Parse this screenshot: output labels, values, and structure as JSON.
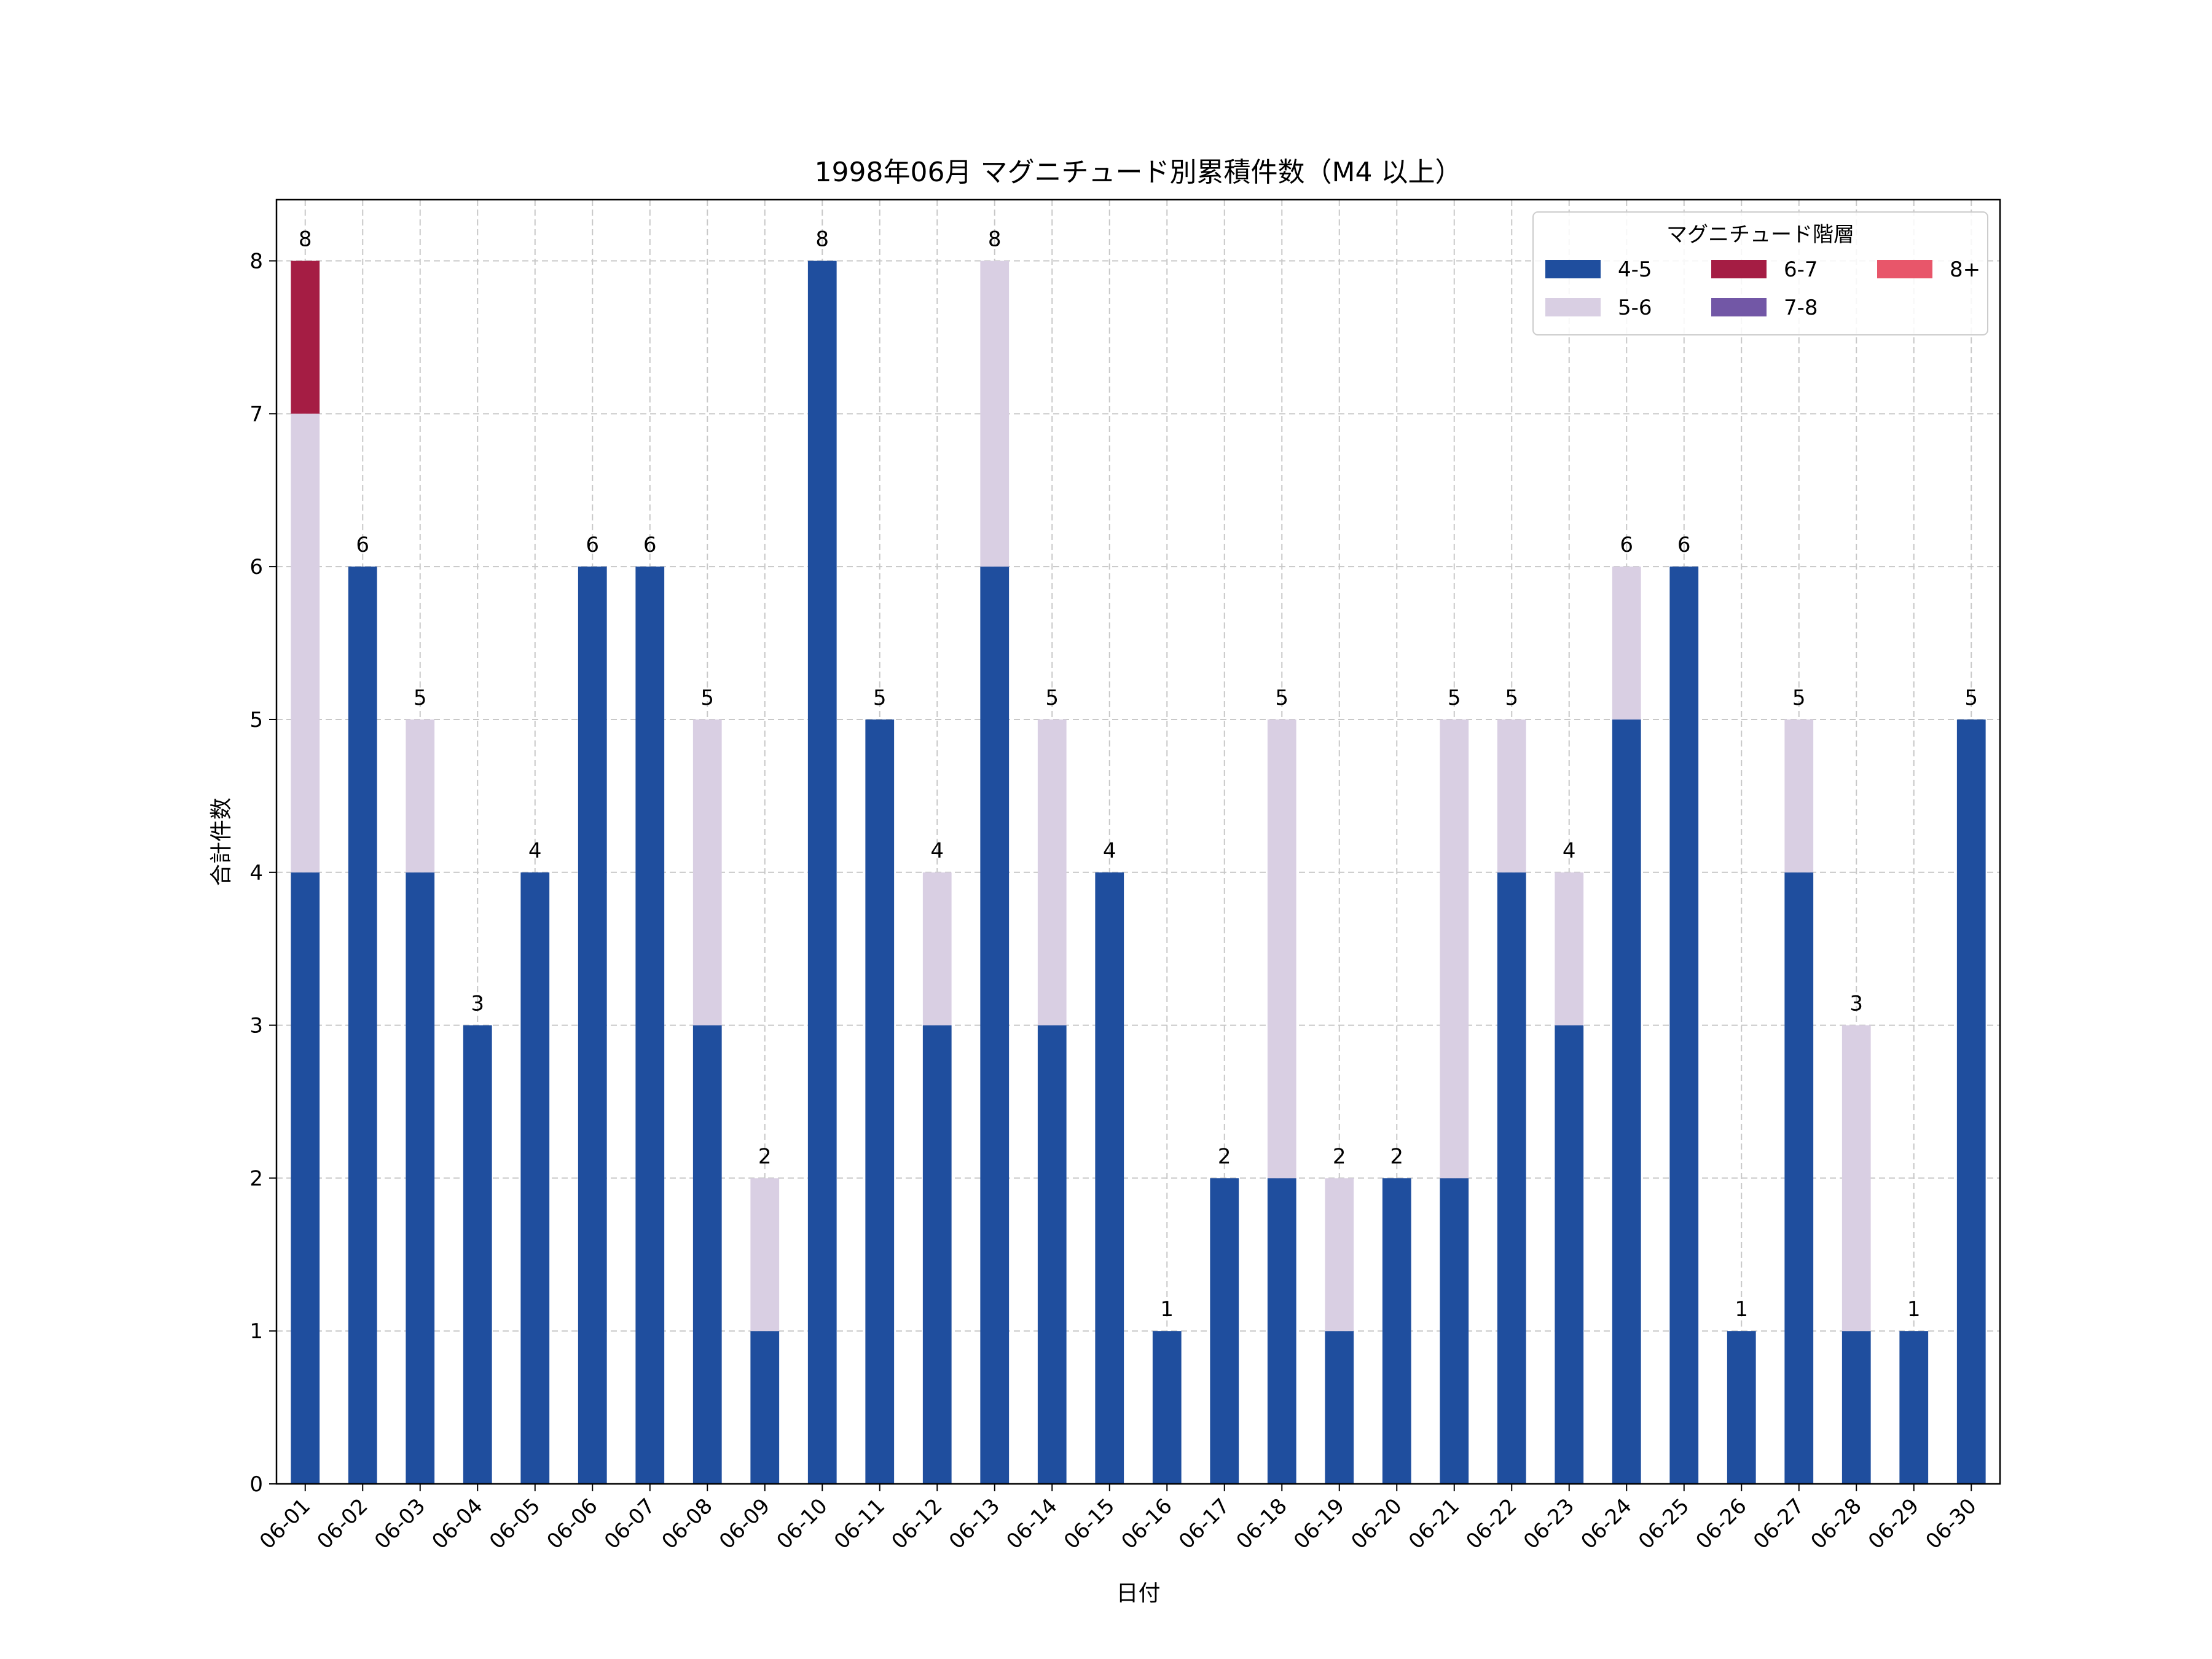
{
  "chart_data": {
    "type": "bar",
    "stacked": true,
    "title": "1998年06月 マグニチュード別累積件数（M4 以上）",
    "xlabel": "日付",
    "ylabel": "合計件数",
    "ylim": [
      0,
      8.4
    ],
    "yticks": [
      0,
      1,
      2,
      3,
      4,
      5,
      6,
      7,
      8
    ],
    "grid": true,
    "legend": {
      "title": "マグニチュード階層",
      "placement": "top-right",
      "columns": 3
    },
    "categories": [
      "06-01",
      "06-02",
      "06-03",
      "06-04",
      "06-05",
      "06-06",
      "06-07",
      "06-08",
      "06-09",
      "06-10",
      "06-11",
      "06-12",
      "06-13",
      "06-14",
      "06-15",
      "06-16",
      "06-17",
      "06-18",
      "06-19",
      "06-20",
      "06-21",
      "06-22",
      "06-23",
      "06-24",
      "06-25",
      "06-26",
      "06-27",
      "06-28",
      "06-29",
      "06-30"
    ],
    "series": [
      {
        "name": "4-5",
        "color": "#1f4e9e",
        "values": [
          4,
          6,
          4,
          3,
          4,
          6,
          6,
          3,
          1,
          8,
          5,
          3,
          6,
          3,
          4,
          1,
          2,
          2,
          1,
          2,
          2,
          4,
          3,
          5,
          6,
          1,
          4,
          1,
          1,
          5
        ]
      },
      {
        "name": "5-6",
        "color": "#d9cfe3",
        "values": [
          3,
          0,
          1,
          0,
          0,
          0,
          0,
          2,
          1,
          0,
          0,
          1,
          2,
          2,
          0,
          0,
          0,
          3,
          1,
          0,
          3,
          1,
          1,
          1,
          0,
          0,
          1,
          2,
          0,
          0
        ]
      },
      {
        "name": "6-7",
        "color": "#a51d44",
        "values": [
          1,
          0,
          0,
          0,
          0,
          0,
          0,
          0,
          0,
          0,
          0,
          0,
          0,
          0,
          0,
          0,
          0,
          0,
          0,
          0,
          0,
          0,
          0,
          0,
          0,
          0,
          0,
          0,
          0,
          0
        ]
      },
      {
        "name": "7-8",
        "color": "#7257a6",
        "values": [
          0,
          0,
          0,
          0,
          0,
          0,
          0,
          0,
          0,
          0,
          0,
          0,
          0,
          0,
          0,
          0,
          0,
          0,
          0,
          0,
          0,
          0,
          0,
          0,
          0,
          0,
          0,
          0,
          0,
          0
        ]
      },
      {
        "name": "8+",
        "color": "#e8566a",
        "values": [
          0,
          0,
          0,
          0,
          0,
          0,
          0,
          0,
          0,
          0,
          0,
          0,
          0,
          0,
          0,
          0,
          0,
          0,
          0,
          0,
          0,
          0,
          0,
          0,
          0,
          0,
          0,
          0,
          0,
          0
        ]
      }
    ],
    "totals": [
      8,
      6,
      5,
      3,
      4,
      6,
      6,
      5,
      2,
      8,
      5,
      4,
      8,
      5,
      4,
      1,
      2,
      5,
      2,
      2,
      5,
      5,
      4,
      6,
      6,
      1,
      5,
      3,
      1,
      5
    ]
  }
}
